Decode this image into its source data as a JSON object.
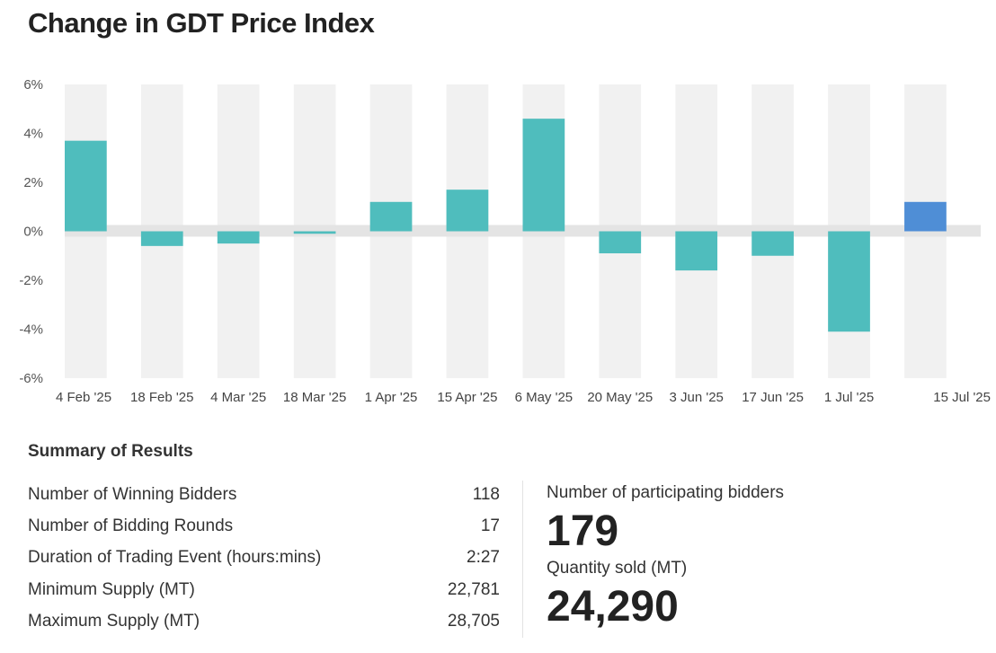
{
  "title": "Change in GDT Price Index",
  "chart_data": {
    "type": "bar",
    "title": "Change in GDT Price Index",
    "xlabel": "",
    "ylabel": "",
    "ylim": [
      -6,
      6
    ],
    "yticks": [
      "6%",
      "4%",
      "2%",
      "0%",
      "-2%",
      "-4%",
      "-6%"
    ],
    "ytick_values": [
      6,
      4,
      2,
      0,
      -2,
      -4,
      -6
    ],
    "categories": [
      "4 Feb '25",
      "18 Feb '25",
      "4 Mar '25",
      "18 Mar '25",
      "1 Apr '25",
      "15 Apr '25",
      "6 May '25",
      "20 May '25",
      "3 Jun '25",
      "17 Jun '25",
      "1 Jul '25",
      "15 Jul '25"
    ],
    "values": [
      3.7,
      -0.6,
      -0.5,
      -0.1,
      1.2,
      1.7,
      4.6,
      -0.9,
      -1.6,
      -1.0,
      -4.1,
      1.2
    ],
    "colors": {
      "bar": "#4fbdbd",
      "highlight": "#4f8ed6",
      "band": "#f1f1f1",
      "zero_band": "#e4e4e4"
    },
    "highlight_index": 11
  },
  "summary": {
    "title": "Summary of Results",
    "rows": [
      {
        "label": "Number of Winning Bidders",
        "value": "118"
      },
      {
        "label": "Number of Bidding Rounds",
        "value": "17"
      },
      {
        "label": "Duration of Trading Event (hours:mins)",
        "value": "2:27"
      },
      {
        "label": "Minimum Supply (MT)",
        "value": "22,781"
      },
      {
        "label": "Maximum Supply (MT)",
        "value": "28,705"
      }
    ]
  },
  "kpis": {
    "bidders_label": "Number of participating bidders",
    "bidders_value": "179",
    "quantity_label": "Quantity sold (MT)",
    "quantity_value": "24,290"
  }
}
